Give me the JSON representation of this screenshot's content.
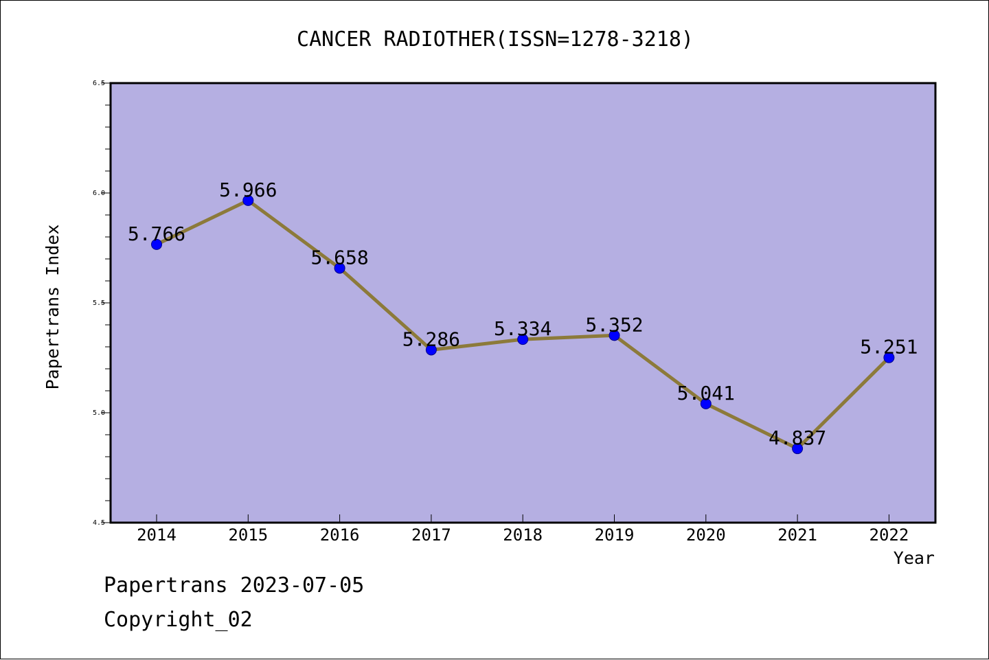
{
  "chart_data": {
    "type": "line",
    "title": "CANCER RADIOTHER(ISSN=1278-3218)",
    "xlabel": "Year",
    "ylabel": "Papertrans Index",
    "categories": [
      "2014",
      "2015",
      "2016",
      "2017",
      "2018",
      "2019",
      "2020",
      "2021",
      "2022"
    ],
    "series": [
      {
        "values": [
          5.766,
          5.966,
          5.658,
          5.286,
          5.334,
          5.352,
          5.041,
          4.837,
          5.251
        ],
        "labels": [
          "5.766",
          "5.966",
          "5.658",
          "5.286",
          "5.334",
          "5.352",
          "5.041",
          "4.837",
          "5.251"
        ]
      }
    ],
    "ylim": [
      4.5,
      6.5
    ],
    "yticks": [
      4.5,
      5.0,
      5.5,
      6.0,
      6.5
    ],
    "ytick_labels": [
      "4.5",
      "5.0",
      "5.5",
      "6.0",
      "6.5"
    ],
    "grid": false,
    "colors": {
      "plot_background": "#b5afe2",
      "line": "#8c7a3a",
      "marker": "#0000ff"
    }
  },
  "footer": {
    "line1": "Papertrans 2023-07-05",
    "line2": "Copyright_02"
  }
}
